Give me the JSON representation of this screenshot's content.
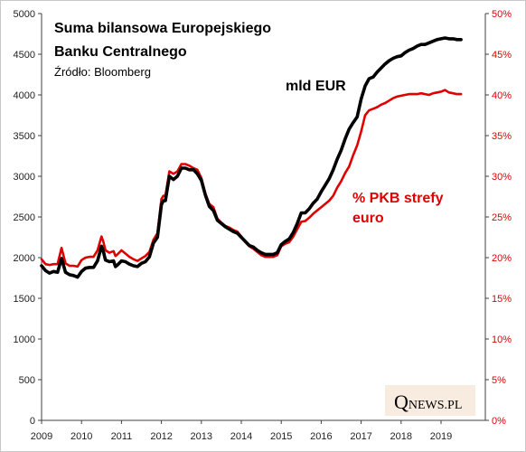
{
  "chart_data": {
    "type": "line",
    "title": [
      "Suma bilansowa  Europejskiego",
      "Banku Centralnego"
    ],
    "source": "Źródło: Bloomberg",
    "y_left": {
      "ylim": [
        0,
        5000
      ],
      "ticks": [
        "0",
        "500",
        "1000",
        "1500",
        "2000",
        "2500",
        "3000",
        "3500",
        "4000",
        "4500",
        "5000"
      ]
    },
    "y_right": {
      "ylim": [
        0,
        50
      ],
      "ticks": [
        "0%",
        "5%",
        "10%",
        "15%",
        "20%",
        "25%",
        "30%",
        "35%",
        "40%",
        "45%",
        "50%"
      ]
    },
    "x_ticks": [
      "2009",
      "2010",
      "2011",
      "2012",
      "2013",
      "2014",
      "2015",
      "2016",
      "2017",
      "2018",
      "2019"
    ],
    "xlim": [
      2009,
      2019.95
    ],
    "series": [
      {
        "name": "mld EUR",
        "axis": "left",
        "color": "#000000",
        "points": [
          [
            2009.0,
            1900
          ],
          [
            2009.1,
            1840
          ],
          [
            2009.2,
            1810
          ],
          [
            2009.3,
            1830
          ],
          [
            2009.4,
            1820
          ],
          [
            2009.5,
            1990
          ],
          [
            2009.6,
            1820
          ],
          [
            2009.7,
            1790
          ],
          [
            2009.8,
            1780
          ],
          [
            2009.9,
            1760
          ],
          [
            2010.0,
            1830
          ],
          [
            2010.1,
            1870
          ],
          [
            2010.2,
            1880
          ],
          [
            2010.3,
            1880
          ],
          [
            2010.4,
            1960
          ],
          [
            2010.5,
            2140
          ],
          [
            2010.55,
            2070
          ],
          [
            2010.6,
            1970
          ],
          [
            2010.7,
            1950
          ],
          [
            2010.8,
            1960
          ],
          [
            2010.85,
            1890
          ],
          [
            2010.9,
            1910
          ],
          [
            2011.0,
            1960
          ],
          [
            2011.1,
            1950
          ],
          [
            2011.2,
            1920
          ],
          [
            2011.3,
            1900
          ],
          [
            2011.4,
            1890
          ],
          [
            2011.5,
            1930
          ],
          [
            2011.6,
            1950
          ],
          [
            2011.7,
            2010
          ],
          [
            2011.8,
            2180
          ],
          [
            2011.9,
            2250
          ],
          [
            2012.0,
            2650
          ],
          [
            2012.05,
            2700
          ],
          [
            2012.1,
            2700
          ],
          [
            2012.2,
            3000
          ],
          [
            2012.3,
            2960
          ],
          [
            2012.4,
            3000
          ],
          [
            2012.5,
            3100
          ],
          [
            2012.6,
            3100
          ],
          [
            2012.7,
            3080
          ],
          [
            2012.8,
            3080
          ],
          [
            2012.9,
            3030
          ],
          [
            2013.0,
            2950
          ],
          [
            2013.1,
            2770
          ],
          [
            2013.2,
            2630
          ],
          [
            2013.3,
            2580
          ],
          [
            2013.4,
            2460
          ],
          [
            2013.5,
            2420
          ],
          [
            2013.6,
            2380
          ],
          [
            2013.7,
            2350
          ],
          [
            2013.8,
            2320
          ],
          [
            2013.9,
            2300
          ],
          [
            2014.0,
            2250
          ],
          [
            2014.1,
            2200
          ],
          [
            2014.2,
            2150
          ],
          [
            2014.3,
            2130
          ],
          [
            2014.4,
            2090
          ],
          [
            2014.5,
            2060
          ],
          [
            2014.6,
            2040
          ],
          [
            2014.7,
            2040
          ],
          [
            2014.8,
            2040
          ],
          [
            2014.9,
            2060
          ],
          [
            2015.0,
            2160
          ],
          [
            2015.1,
            2200
          ],
          [
            2015.2,
            2230
          ],
          [
            2015.3,
            2310
          ],
          [
            2015.4,
            2420
          ],
          [
            2015.5,
            2550
          ],
          [
            2015.6,
            2550
          ],
          [
            2015.7,
            2600
          ],
          [
            2015.8,
            2670
          ],
          [
            2015.9,
            2720
          ],
          [
            2016.0,
            2810
          ],
          [
            2016.1,
            2890
          ],
          [
            2016.2,
            2970
          ],
          [
            2016.3,
            3080
          ],
          [
            2016.4,
            3210
          ],
          [
            2016.5,
            3320
          ],
          [
            2016.6,
            3460
          ],
          [
            2016.7,
            3580
          ],
          [
            2016.8,
            3660
          ],
          [
            2016.9,
            3730
          ],
          [
            2017.0,
            3950
          ],
          [
            2017.1,
            4110
          ],
          [
            2017.2,
            4200
          ],
          [
            2017.3,
            4220
          ],
          [
            2017.4,
            4280
          ],
          [
            2017.5,
            4330
          ],
          [
            2017.6,
            4380
          ],
          [
            2017.7,
            4420
          ],
          [
            2017.8,
            4450
          ],
          [
            2017.9,
            4470
          ],
          [
            2018.0,
            4480
          ],
          [
            2018.1,
            4520
          ],
          [
            2018.2,
            4550
          ],
          [
            2018.3,
            4570
          ],
          [
            2018.4,
            4600
          ],
          [
            2018.5,
            4620
          ],
          [
            2018.6,
            4620
          ],
          [
            2018.7,
            4640
          ],
          [
            2018.8,
            4660
          ],
          [
            2018.9,
            4680
          ],
          [
            2019.0,
            4690
          ],
          [
            2019.1,
            4700
          ],
          [
            2019.2,
            4690
          ],
          [
            2019.3,
            4690
          ],
          [
            2019.4,
            4680
          ],
          [
            2019.5,
            4680
          ]
        ]
      },
      {
        "name": "% PKB strefy euro",
        "axis": "right",
        "color": "#e00000",
        "points": [
          [
            2009.0,
            19.8
          ],
          [
            2009.1,
            19.2
          ],
          [
            2009.2,
            19.1
          ],
          [
            2009.3,
            19.2
          ],
          [
            2009.4,
            19.2
          ],
          [
            2009.5,
            21.2
          ],
          [
            2009.6,
            19.3
          ],
          [
            2009.7,
            19.0
          ],
          [
            2009.8,
            19.0
          ],
          [
            2009.9,
            18.9
          ],
          [
            2010.0,
            19.7
          ],
          [
            2010.1,
            20.0
          ],
          [
            2010.2,
            20.1
          ],
          [
            2010.3,
            20.1
          ],
          [
            2010.4,
            20.9
          ],
          [
            2010.5,
            22.6
          ],
          [
            2010.55,
            21.9
          ],
          [
            2010.6,
            20.9
          ],
          [
            2010.7,
            20.6
          ],
          [
            2010.8,
            20.8
          ],
          [
            2010.85,
            20.2
          ],
          [
            2010.9,
            20.4
          ],
          [
            2011.0,
            20.9
          ],
          [
            2011.1,
            20.5
          ],
          [
            2011.2,
            20.1
          ],
          [
            2011.3,
            19.8
          ],
          [
            2011.4,
            19.6
          ],
          [
            2011.5,
            19.9
          ],
          [
            2011.6,
            20.2
          ],
          [
            2011.7,
            20.7
          ],
          [
            2011.8,
            22.2
          ],
          [
            2011.9,
            23.0
          ],
          [
            2012.0,
            27.2
          ],
          [
            2012.05,
            27.6
          ],
          [
            2012.1,
            27.6
          ],
          [
            2012.2,
            30.6
          ],
          [
            2012.3,
            30.3
          ],
          [
            2012.4,
            30.6
          ],
          [
            2012.5,
            31.5
          ],
          [
            2012.6,
            31.5
          ],
          [
            2012.7,
            31.3
          ],
          [
            2012.8,
            31.0
          ],
          [
            2012.9,
            30.8
          ],
          [
            2013.0,
            29.8
          ],
          [
            2013.1,
            27.9
          ],
          [
            2013.2,
            26.6
          ],
          [
            2013.3,
            26.2
          ],
          [
            2013.4,
            24.8
          ],
          [
            2013.5,
            24.3
          ],
          [
            2013.6,
            23.9
          ],
          [
            2013.7,
            23.7
          ],
          [
            2013.8,
            23.4
          ],
          [
            2013.9,
            23.2
          ],
          [
            2014.0,
            22.6
          ],
          [
            2014.1,
            21.9
          ],
          [
            2014.2,
            21.4
          ],
          [
            2014.3,
            21.1
          ],
          [
            2014.4,
            20.7
          ],
          [
            2014.5,
            20.3
          ],
          [
            2014.6,
            20.1
          ],
          [
            2014.7,
            20.1
          ],
          [
            2014.8,
            20.1
          ],
          [
            2014.9,
            20.3
          ],
          [
            2015.0,
            21.4
          ],
          [
            2015.1,
            21.7
          ],
          [
            2015.2,
            21.9
          ],
          [
            2015.3,
            22.6
          ],
          [
            2015.4,
            23.5
          ],
          [
            2015.5,
            24.4
          ],
          [
            2015.6,
            24.5
          ],
          [
            2015.7,
            24.9
          ],
          [
            2015.8,
            25.4
          ],
          [
            2015.9,
            25.8
          ],
          [
            2016.0,
            26.2
          ],
          [
            2016.1,
            26.6
          ],
          [
            2016.2,
            27.0
          ],
          [
            2016.3,
            27.6
          ],
          [
            2016.4,
            28.6
          ],
          [
            2016.5,
            29.4
          ],
          [
            2016.6,
            30.4
          ],
          [
            2016.7,
            31.2
          ],
          [
            2016.8,
            32.6
          ],
          [
            2016.9,
            33.8
          ],
          [
            2017.0,
            35.5
          ],
          [
            2017.1,
            37.5
          ],
          [
            2017.2,
            38.1
          ],
          [
            2017.3,
            38.3
          ],
          [
            2017.4,
            38.5
          ],
          [
            2017.5,
            38.8
          ],
          [
            2017.6,
            39.0
          ],
          [
            2017.7,
            39.3
          ],
          [
            2017.8,
            39.6
          ],
          [
            2017.9,
            39.8
          ],
          [
            2018.0,
            39.9
          ],
          [
            2018.1,
            40.0
          ],
          [
            2018.2,
            40.1
          ],
          [
            2018.3,
            40.1
          ],
          [
            2018.4,
            40.1
          ],
          [
            2018.5,
            40.2
          ],
          [
            2018.6,
            40.1
          ],
          [
            2018.7,
            40.0
          ],
          [
            2018.8,
            40.2
          ],
          [
            2018.9,
            40.3
          ],
          [
            2019.0,
            40.4
          ],
          [
            2019.1,
            40.6
          ],
          [
            2019.2,
            40.3
          ],
          [
            2019.3,
            40.2
          ],
          [
            2019.4,
            40.1
          ],
          [
            2019.5,
            40.1
          ]
        ]
      }
    ],
    "grid": false
  },
  "labels": {
    "eur": "mld EUR",
    "pkb_line1": "% PKB strefy",
    "pkb_line2": "euro"
  },
  "logo": {
    "q": "Q",
    "rest": "NEWS.PL"
  }
}
